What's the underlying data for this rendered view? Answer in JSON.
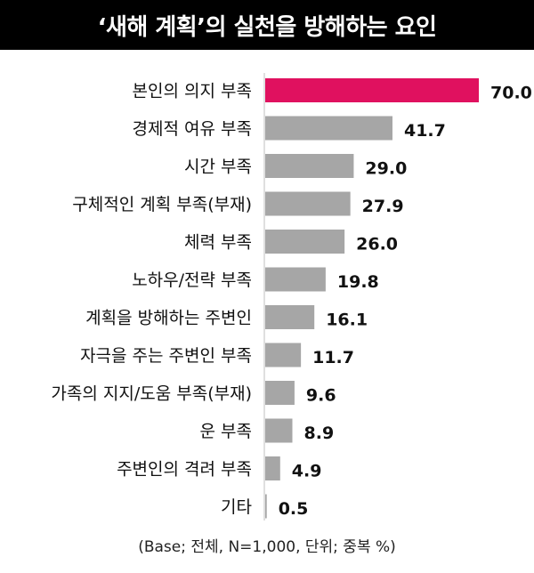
{
  "title": "‘새해 계획’의 실천을 방해하는 요인",
  "footnote": "(Base; 전체, N=1,000, 단위; 중복 %)",
  "colors": {
    "highlight": "#e0115f",
    "bar": "#a6a6a6",
    "axis": "#bfbfbf",
    "title_bg": "#000000"
  },
  "chart_data": {
    "type": "bar",
    "orientation": "horizontal",
    "categories": [
      "본인의 의지 부족",
      "경제적 여유 부족",
      "시간 부족",
      "구체적인 계획 부족(부재)",
      "체력 부족",
      "노하우/전략 부족",
      "계획을 방해하는 주변인",
      "자극을 주는 주변인 부족",
      "가족의 지지/도움 부족(부재)",
      "운 부족",
      "주변인의 격려 부족",
      "기타"
    ],
    "values": [
      70.0,
      41.7,
      29.0,
      27.9,
      26.0,
      19.8,
      16.1,
      11.7,
      9.6,
      8.9,
      4.9,
      0.5
    ],
    "value_labels": [
      "70.0",
      "41.7",
      "29.0",
      "27.9",
      "26.0",
      "19.8",
      "16.1",
      "11.7",
      "9.6",
      "8.9",
      "4.9",
      "0.5"
    ],
    "highlight_index": 0,
    "xlim": [
      0,
      70
    ],
    "grid": false
  }
}
